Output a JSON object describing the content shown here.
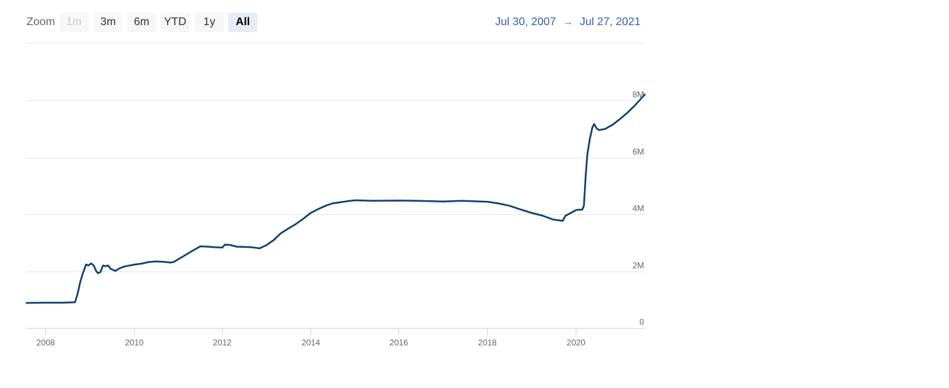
{
  "toolbar": {
    "zoom_label": "Zoom",
    "buttons": [
      {
        "label": "1m",
        "state": "disabled"
      },
      {
        "label": "3m",
        "state": "normal"
      },
      {
        "label": "6m",
        "state": "normal"
      },
      {
        "label": "YTD",
        "state": "normal"
      },
      {
        "label": "1y",
        "state": "normal"
      },
      {
        "label": "All",
        "state": "active"
      }
    ]
  },
  "range": {
    "from": "Jul 30, 2007",
    "arrow": "→",
    "to": "Jul 27, 2021"
  },
  "colors": {
    "line": "#0d3e6e",
    "grid": "#e6e6e6",
    "axis": "#ccd6eb",
    "range_text": "#335cad"
  },
  "chart_data": {
    "type": "line",
    "title": "",
    "xlabel": "",
    "ylabel": "",
    "xlim": [
      "2007-07-30",
      "2021-07-27"
    ],
    "ylim": [
      0,
      8000000
    ],
    "grid": true,
    "y_axis_side": "right",
    "yticks": [
      {
        "value": 0,
        "label": "0"
      },
      {
        "value": 2000000,
        "label": "2M"
      },
      {
        "value": 4000000,
        "label": "4M"
      },
      {
        "value": 6000000,
        "label": "6M"
      },
      {
        "value": 8000000,
        "label": "8M"
      }
    ],
    "xticks": [
      {
        "value": "2008-01-01",
        "label": "2008"
      },
      {
        "value": "2010-01-01",
        "label": "2010"
      },
      {
        "value": "2012-01-01",
        "label": "2012"
      },
      {
        "value": "2014-01-01",
        "label": "2014"
      },
      {
        "value": "2016-01-01",
        "label": "2016"
      },
      {
        "value": "2018-01-01",
        "label": "2018"
      },
      {
        "value": "2020-01-01",
        "label": "2020"
      }
    ],
    "series": [
      {
        "name": "",
        "points": [
          [
            "2007-07-30",
            880000
          ],
          [
            "2008-01-01",
            890000
          ],
          [
            "2008-06-01",
            890000
          ],
          [
            "2008-09-03",
            905000
          ],
          [
            "2008-09-24",
            1200000
          ],
          [
            "2008-10-15",
            1600000
          ],
          [
            "2008-11-05",
            1900000
          ],
          [
            "2008-12-03",
            2230000
          ],
          [
            "2008-12-24",
            2200000
          ],
          [
            "2009-01-14",
            2270000
          ],
          [
            "2009-02-04",
            2200000
          ],
          [
            "2009-02-25",
            2000000
          ],
          [
            "2009-03-11",
            1930000
          ],
          [
            "2009-04-01",
            1960000
          ],
          [
            "2009-04-22",
            2200000
          ],
          [
            "2009-05-13",
            2170000
          ],
          [
            "2009-06-03",
            2200000
          ],
          [
            "2009-06-24",
            2080000
          ],
          [
            "2009-07-15",
            2040000
          ],
          [
            "2009-08-05",
            2010000
          ],
          [
            "2009-09-02",
            2090000
          ],
          [
            "2009-10-07",
            2150000
          ],
          [
            "2009-11-04",
            2180000
          ],
          [
            "2009-12-02",
            2200000
          ],
          [
            "2010-01-06",
            2230000
          ],
          [
            "2010-03-03",
            2260000
          ],
          [
            "2010-05-05",
            2320000
          ],
          [
            "2010-07-07",
            2340000
          ],
          [
            "2010-09-01",
            2330000
          ],
          [
            "2010-11-03",
            2300000
          ],
          [
            "2010-12-01",
            2330000
          ],
          [
            "2011-01-05",
            2420000
          ],
          [
            "2011-03-02",
            2560000
          ],
          [
            "2011-05-04",
            2720000
          ],
          [
            "2011-07-06",
            2870000
          ],
          [
            "2011-09-07",
            2860000
          ],
          [
            "2011-11-02",
            2840000
          ],
          [
            "2012-01-04",
            2830000
          ],
          [
            "2012-01-25",
            2930000
          ],
          [
            "2012-03-07",
            2920000
          ],
          [
            "2012-05-02",
            2860000
          ],
          [
            "2012-07-04",
            2850000
          ],
          [
            "2012-09-05",
            2840000
          ],
          [
            "2012-11-07",
            2800000
          ],
          [
            "2013-01-02",
            2910000
          ],
          [
            "2013-03-06",
            3100000
          ],
          [
            "2013-05-01",
            3330000
          ],
          [
            "2013-07-03",
            3500000
          ],
          [
            "2013-09-04",
            3660000
          ],
          [
            "2013-11-06",
            3850000
          ],
          [
            "2014-01-01",
            4040000
          ],
          [
            "2014-03-05",
            4180000
          ],
          [
            "2014-05-07",
            4300000
          ],
          [
            "2014-07-02",
            4380000
          ],
          [
            "2014-09-03",
            4420000
          ],
          [
            "2014-11-05",
            4460000
          ],
          [
            "2015-01-07",
            4490000
          ],
          [
            "2015-06-03",
            4470000
          ],
          [
            "2016-01-06",
            4480000
          ],
          [
            "2016-06-01",
            4470000
          ],
          [
            "2017-01-04",
            4450000
          ],
          [
            "2017-06-07",
            4470000
          ],
          [
            "2018-01-03",
            4440000
          ],
          [
            "2018-04-04",
            4380000
          ],
          [
            "2018-07-04",
            4300000
          ],
          [
            "2018-10-03",
            4170000
          ],
          [
            "2019-01-02",
            4050000
          ],
          [
            "2019-04-03",
            3950000
          ],
          [
            "2019-07-03",
            3810000
          ],
          [
            "2019-09-18",
            3770000
          ],
          [
            "2019-10-09",
            3940000
          ],
          [
            "2019-12-04",
            4070000
          ],
          [
            "2020-01-08",
            4150000
          ],
          [
            "2020-02-05",
            4160000
          ],
          [
            "2020-02-26",
            4160000
          ],
          [
            "2020-03-11",
            4300000
          ],
          [
            "2020-03-25",
            5300000
          ],
          [
            "2020-04-08",
            6100000
          ],
          [
            "2020-04-29",
            6650000
          ],
          [
            "2020-05-20",
            7050000
          ],
          [
            "2020-06-03",
            7170000
          ],
          [
            "2020-06-24",
            7020000
          ],
          [
            "2020-07-15",
            6960000
          ],
          [
            "2020-09-02",
            7000000
          ],
          [
            "2020-11-04",
            7150000
          ],
          [
            "2021-01-06",
            7360000
          ],
          [
            "2021-03-03",
            7560000
          ],
          [
            "2021-05-05",
            7820000
          ],
          [
            "2021-06-30",
            8080000
          ],
          [
            "2021-07-27",
            8210000
          ]
        ]
      }
    ]
  }
}
